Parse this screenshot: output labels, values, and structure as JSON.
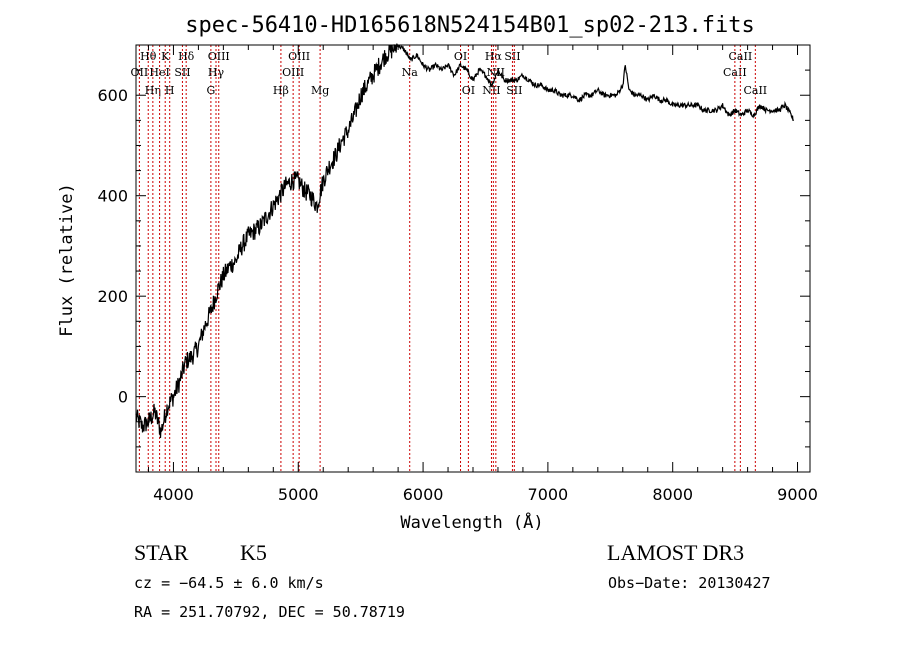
{
  "chart_data": {
    "type": "line",
    "title": "spec-56410-HD165618N524154B01_sp02-213.fits",
    "xlabel": "Wavelength (Å)",
    "ylabel": "Flux (relative)",
    "xlim": [
      3700,
      9100
    ],
    "ylim": [
      -150,
      700
    ],
    "x_ticks": [
      4000,
      5000,
      6000,
      7000,
      8000,
      9000
    ],
    "y_ticks": [
      0,
      200,
      400,
      600
    ],
    "grid": false,
    "line_color": "#000000",
    "marker_color": "#cc0000",
    "series": [
      {
        "x": [
          3700,
          3750,
          3800,
          3850,
          3900,
          3950,
          4000,
          4050,
          4100,
          4150,
          4200,
          4250,
          4300,
          4350,
          4400,
          4450,
          4500,
          4550,
          4600,
          4650,
          4700,
          4750,
          4800,
          4850,
          4900,
          4950,
          5000,
          5050,
          5100,
          5150,
          5200,
          5250,
          5300,
          5350,
          5400,
          5450,
          5500,
          5550,
          5600,
          5650,
          5700,
          5750,
          5800,
          5850,
          5900,
          5950,
          6000,
          6050,
          6100,
          6150,
          6200,
          6250,
          6300,
          6350,
          6400,
          6450,
          6500,
          6550,
          6600,
          6650,
          6700,
          6750,
          6800,
          6850,
          6900,
          6950,
          7000,
          7050,
          7100,
          7150,
          7200,
          7250,
          7300,
          7350,
          7400,
          7450,
          7500,
          7550,
          7600,
          7620,
          7650,
          7700,
          7750,
          7800,
          7850,
          7900,
          7950,
          8000,
          8050,
          8100,
          8150,
          8200,
          8250,
          8300,
          8350,
          8400,
          8450,
          8500,
          8550,
          8600,
          8650,
          8700,
          8750,
          8800,
          8850,
          8900,
          8950,
          8970
        ],
        "y": [
          -40,
          -60,
          -50,
          -30,
          -70,
          -20,
          0,
          30,
          70,
          80,
          100,
          140,
          170,
          210,
          240,
          260,
          270,
          300,
          320,
          330,
          340,
          360,
          380,
          400,
          420,
          430,
          430,
          410,
          400,
          380,
          430,
          460,
          480,
          510,
          530,
          560,
          600,
          620,
          640,
          660,
          680,
          690,
          700,
          690,
          670,
          680,
          660,
          650,
          660,
          650,
          660,
          640,
          660,
          650,
          630,
          650,
          640,
          620,
          650,
          630,
          630,
          630,
          640,
          630,
          620,
          620,
          610,
          610,
          600,
          600,
          600,
          590,
          600,
          600,
          610,
          600,
          600,
          600,
          620,
          660,
          610,
          600,
          600,
          590,
          600,
          590,
          590,
          580,
          580,
          580,
          580,
          580,
          570,
          570,
          570,
          580,
          560,
          570,
          560,
          570,
          560,
          580,
          570,
          570,
          570,
          580,
          560,
          550
        ]
      }
    ],
    "line_markers": [
      {
        "x": 3727,
        "label": "OII",
        "row": 1
      },
      {
        "x": 3798,
        "label": "Hθ",
        "row": 0
      },
      {
        "x": 3835,
        "label": "Hη",
        "row": 2
      },
      {
        "x": 3889,
        "label": "HeI",
        "row": 1
      },
      {
        "x": 3934,
        "label": "K",
        "row": 0
      },
      {
        "x": 3970,
        "label": "H",
        "row": 2
      },
      {
        "x": 4072,
        "label": "SII",
        "row": 1
      },
      {
        "x": 4102,
        "label": "Hδ",
        "row": 0
      },
      {
        "x": 4300,
        "label": "G",
        "row": 2
      },
      {
        "x": 4341,
        "label": "Hγ",
        "row": 1
      },
      {
        "x": 4363,
        "label": "OIII",
        "row": 0
      },
      {
        "x": 4861,
        "label": "Hβ",
        "row": 2
      },
      {
        "x": 4959,
        "label": "OIII",
        "row": 1
      },
      {
        "x": 5007,
        "label": "OIII",
        "row": 0
      },
      {
        "x": 5175,
        "label": "Mg",
        "row": 2
      },
      {
        "x": 5893,
        "label": "Na",
        "row": 1
      },
      {
        "x": 6300,
        "label": "OI",
        "row": 0
      },
      {
        "x": 6363,
        "label": "OI",
        "row": 2
      },
      {
        "x": 6548,
        "label": "NII",
        "row": 2
      },
      {
        "x": 6563,
        "label": "Hα",
        "row": 0
      },
      {
        "x": 6583,
        "label": "NII",
        "row": 1
      },
      {
        "x": 6716,
        "label": "SII",
        "row": 0
      },
      {
        "x": 6731,
        "label": "SII",
        "row": 2
      },
      {
        "x": 8498,
        "label": "CaII",
        "row": 1
      },
      {
        "x": 8542,
        "label": "CaII",
        "row": 0
      },
      {
        "x": 8662,
        "label": "CaII",
        "row": 2
      }
    ]
  },
  "info": {
    "object_class": "STAR",
    "subclass": "K5",
    "survey": "LAMOST DR3",
    "cz": "cz = −64.5 ± 6.0 km/s",
    "obs_date": "Obs−Date: 20130427",
    "coords": "RA = 251.70792, DEC =  50.78719"
  }
}
